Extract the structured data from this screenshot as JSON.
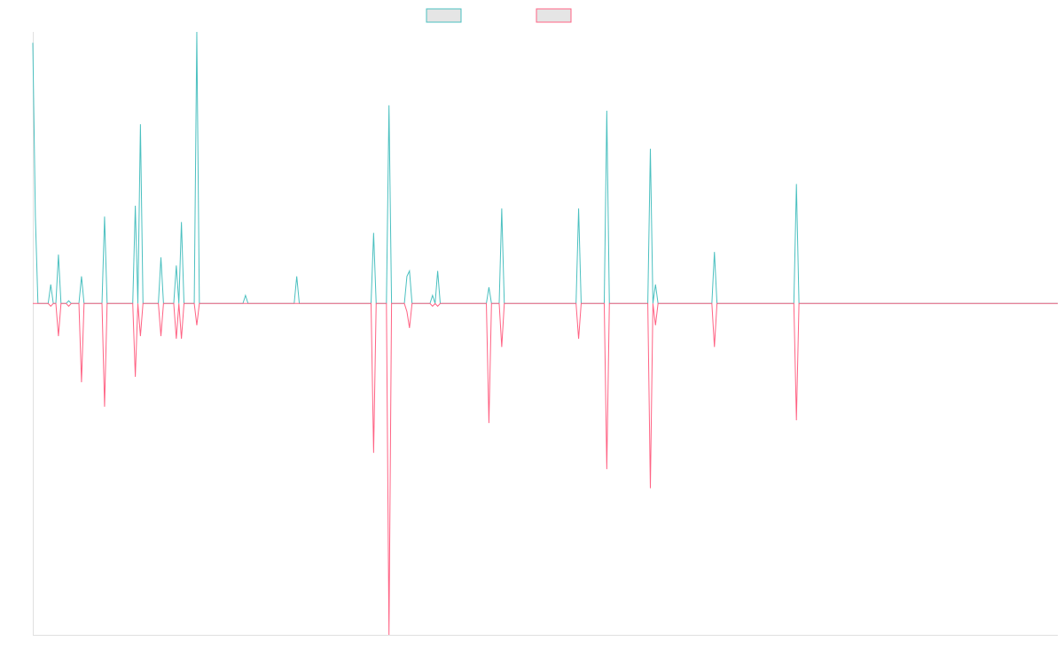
{
  "chart_data": {
    "type": "line",
    "title": "",
    "xlabel": "",
    "ylabel": "",
    "xlim": [
      0,
      400
    ],
    "ylim": [
      -122,
      100
    ],
    "grid": false,
    "legend": {
      "position": "top",
      "entries": [
        {
          "color": "#4bc0c0"
        },
        {
          "color": "#ff6384"
        }
      ]
    },
    "legend_fill": "#e5e5e5",
    "axis_color": "#e0e0e0",
    "baseline": 0,
    "series": [
      {
        "color": "#4bc0c0",
        "points": [
          [
            0,
            96
          ],
          [
            1,
            32
          ],
          [
            7,
            7
          ],
          [
            10,
            18
          ],
          [
            14,
            1
          ],
          [
            19,
            10
          ],
          [
            28,
            32
          ],
          [
            40,
            36
          ],
          [
            42,
            66
          ],
          [
            50,
            17
          ],
          [
            56,
            14
          ],
          [
            58,
            30
          ],
          [
            64,
            100
          ],
          [
            83,
            3
          ],
          [
            103,
            10
          ],
          [
            133,
            26
          ],
          [
            139,
            73
          ],
          [
            146,
            10
          ],
          [
            147,
            12
          ],
          [
            156,
            3
          ],
          [
            158,
            12
          ],
          [
            178,
            6
          ],
          [
            183,
            35
          ],
          [
            213,
            35
          ],
          [
            224,
            71
          ],
          [
            241,
            57
          ],
          [
            243,
            7
          ],
          [
            266,
            19
          ],
          [
            298,
            44
          ]
        ]
      },
      {
        "color": "#ff6384",
        "points": [
          [
            7,
            -1
          ],
          [
            10,
            -12
          ],
          [
            14,
            -1
          ],
          [
            19,
            -29
          ],
          [
            28,
            -38
          ],
          [
            40,
            -27
          ],
          [
            42,
            -12
          ],
          [
            50,
            -12
          ],
          [
            56,
            -13
          ],
          [
            58,
            -13
          ],
          [
            64,
            -8
          ],
          [
            133,
            -55
          ],
          [
            139,
            -122
          ],
          [
            146,
            -3
          ],
          [
            147,
            -9
          ],
          [
            156,
            -1
          ],
          [
            158,
            -1
          ],
          [
            178,
            -44
          ],
          [
            183,
            -16
          ],
          [
            213,
            -13
          ],
          [
            224,
            -61
          ],
          [
            241,
            -68
          ],
          [
            243,
            -8
          ],
          [
            266,
            -16
          ],
          [
            298,
            -43
          ]
        ]
      }
    ]
  }
}
